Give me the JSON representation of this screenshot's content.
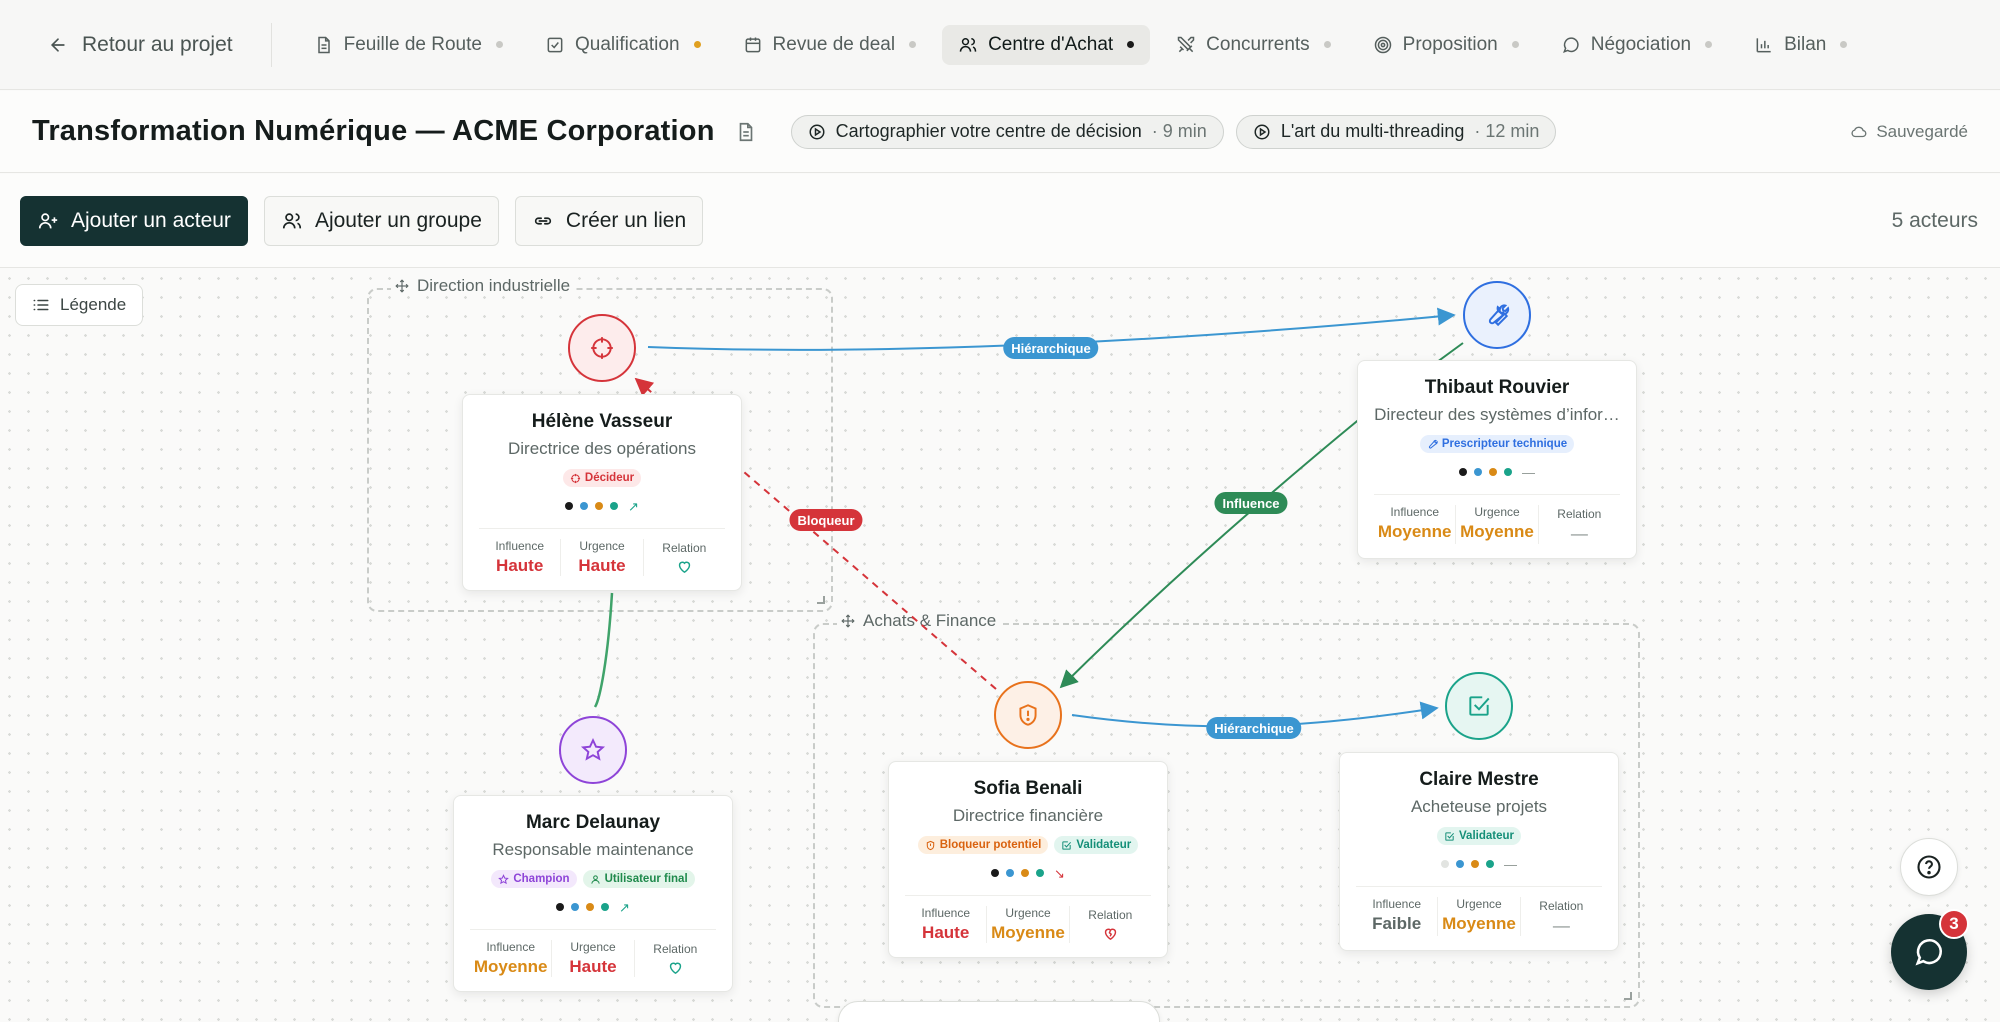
{
  "nav": {
    "back_label": "Retour au projet",
    "tabs": [
      {
        "label": "Feuille de Route",
        "icon": "document-icon",
        "dot_color": "#c9c9c5",
        "active": false
      },
      {
        "label": "Qualification",
        "icon": "checkbox-icon",
        "dot_color": "#e0a020",
        "active": false
      },
      {
        "label": "Revue de deal",
        "icon": "calendar-icon",
        "dot_color": "#c9c9c5",
        "active": false
      },
      {
        "label": "Centre d'Achat",
        "icon": "users-icon",
        "dot_color": "#1a1a1a",
        "active": true
      },
      {
        "label": "Concurrents",
        "icon": "swords-icon",
        "dot_color": "#c9c9c5",
        "active": false
      },
      {
        "label": "Proposition",
        "icon": "target-icon",
        "dot_color": "#c9c9c5",
        "active": false
      },
      {
        "label": "Négociation",
        "icon": "chat-icon",
        "dot_color": "#c9c9c5",
        "active": false
      },
      {
        "label": "Bilan",
        "icon": "bar-chart-icon",
        "dot_color": "#c9c9c5",
        "active": false
      }
    ]
  },
  "header": {
    "title": "Transformation Numérique — ACME Corporation",
    "videos": [
      {
        "label": "Cartographier votre centre de décision",
        "duration": "· 9 min"
      },
      {
        "label": "L'art du multi-threading",
        "duration": "· 12 min"
      }
    ],
    "saved_label": "Sauvegardé"
  },
  "toolbar": {
    "add_actor": "Ajouter un acteur",
    "add_group": "Ajouter un groupe",
    "create_link": "Créer un lien",
    "actor_count": "5 acteurs"
  },
  "canvas": {
    "legend_label": "Légende",
    "groups": [
      {
        "id": "g1",
        "label": "Direction industrielle"
      },
      {
        "id": "g2",
        "label": "Achats & Finance"
      }
    ],
    "edge_labels": {
      "hierarchique_1": "Hiérarchique",
      "bloqueur": "Bloqueur",
      "influence": "Influence",
      "hierarchique_2": "Hiérarchique"
    },
    "colors": {
      "hierarchique": "#3b96d1",
      "bloqueur": "#d5343a",
      "influence": "#2e8b57",
      "link_green": "#3fa36a"
    },
    "metric_labels": {
      "influence": "Influence",
      "urgence": "Urgence",
      "relation": "Relation"
    },
    "actors": [
      {
        "name": "Hélène Vasseur",
        "role": "Directrice des opérations",
        "icon": "crosshair-icon",
        "color": "#d5343a",
        "badges": [
          {
            "label": "Décideur",
            "icon": "crosshair-icon"
          }
        ],
        "dots": [
          "#1a1a1a",
          "#3b96d1",
          "#d98a16",
          "#1aa38a"
        ],
        "trend": "up",
        "influence": "Haute",
        "urgence": "Haute",
        "relation": "heart-good"
      },
      {
        "name": "Thibaut Rouvier",
        "role": "Directeur des systèmes d’infor…",
        "icon": "wrench-icon",
        "color": "#2f6fe0",
        "badges": [
          {
            "label": "Prescripteur technique",
            "icon": "wrench-icon"
          }
        ],
        "dots": [
          "#1a1a1a",
          "#3b96d1",
          "#d98a16",
          "#1aa38a"
        ],
        "trend": "flat",
        "influence": "Moyenne",
        "urgence": "Moyenne",
        "relation": "—"
      },
      {
        "name": "Marc Delaunay",
        "role": "Responsable maintenance",
        "icon": "star-icon",
        "color": "#8e44d8",
        "badges": [
          {
            "label": "Champion",
            "icon": "star-icon"
          },
          {
            "label": "Utilisateur final",
            "icon": "user-icon"
          }
        ],
        "dots": [
          "#1a1a1a",
          "#3b96d1",
          "#d98a16",
          "#1aa38a"
        ],
        "trend": "up",
        "influence": "Moyenne",
        "urgence": "Haute",
        "relation": "heart-good"
      },
      {
        "name": "Sofia Benali",
        "role": "Directrice financière",
        "icon": "shield-alert-icon",
        "color": "#e8721c",
        "badges": [
          {
            "label": "Bloqueur potentiel",
            "icon": "shield-alert-icon"
          },
          {
            "label": "Validateur",
            "icon": "check-square-icon"
          }
        ],
        "dots": [
          "#1a1a1a",
          "#3b96d1",
          "#d98a16",
          "#1aa38a"
        ],
        "trend": "down",
        "influence": "Haute",
        "urgence": "Moyenne",
        "relation": "heart-broken"
      },
      {
        "name": "Claire Mestre",
        "role": "Acheteuse projets",
        "icon": "check-square-icon",
        "color": "#1aa38a",
        "badges": [
          {
            "label": "Validateur",
            "icon": "check-square-icon"
          }
        ],
        "dots": [
          "#e2e4e1",
          "#3b96d1",
          "#d98a16",
          "#1aa38a"
        ],
        "trend": "flat",
        "influence": "Faible",
        "urgence": "Moyenne",
        "relation": "—"
      }
    ]
  },
  "chat": {
    "unread_count": "3"
  }
}
